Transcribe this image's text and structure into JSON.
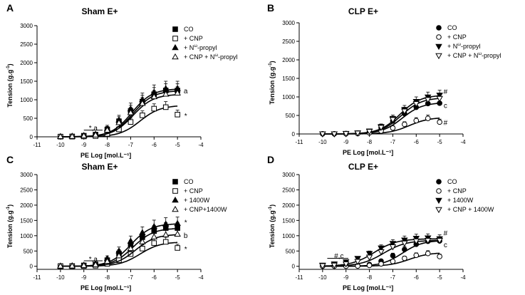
{
  "figure": {
    "x_ticks": [
      -11,
      -10,
      -9,
      -8,
      -7,
      -6,
      -5,
      -4
    ],
    "y_ticks": [
      0,
      500,
      1000,
      1500,
      2000,
      2500,
      3000
    ],
    "y_tick_labels": [
      "0",
      "500",
      "1000",
      "1500",
      "2000",
      "2500",
      "3000"
    ],
    "xlabel": "PE Log [mol.L⁻¹]",
    "ylabel_main": "Tension (g.g",
    "ylabel_sup": "-1",
    "ylabel_close": ")"
  },
  "chart_data": [
    {
      "type": "line",
      "panel_letter": "A",
      "title": "Sham E+",
      "xlabel": "PE Log [mol.L⁻¹]",
      "ylabel": "Tension (g.g⁻¹)",
      "xlim": [
        -11,
        -4
      ],
      "ylim": [
        0,
        3000
      ],
      "x": [
        -10,
        -9.5,
        -9,
        -8.5,
        -8,
        -7.5,
        -7,
        -6.5,
        -6,
        -5.5,
        -5
      ],
      "series": [
        {
          "name": "CO",
          "legend_label": "CO",
          "marker": "square-filled",
          "fit": [
            1250,
            -6.9,
            1.0
          ],
          "values": [
            5,
            10,
            30,
            60,
            200,
            420,
            700,
            950,
            1150,
            1250,
            1250
          ],
          "errors": [
            20,
            20,
            30,
            40,
            80,
            120,
            150,
            170,
            180,
            180,
            180
          ]
        },
        {
          "name": "+ CNP",
          "legend_label": "+ CNP",
          "marker": "square-open",
          "fit": [
            850,
            -6.6,
            1.0
          ],
          "values": [
            5,
            5,
            10,
            20,
            80,
            200,
            400,
            580,
            760,
            800,
            600
          ],
          "errors": [
            15,
            15,
            20,
            30,
            50,
            80,
            100,
            120,
            130,
            150,
            120
          ]
        },
        {
          "name": "+ Nω-propyl",
          "legend_label_pre": "+ N",
          "legend_label_sup": "ω",
          "legend_label_post": "-propyl",
          "marker": "triangle-filled",
          "fit": [
            1300,
            -6.95,
            1.0
          ],
          "values": [
            5,
            15,
            35,
            70,
            220,
            450,
            750,
            1000,
            1200,
            1300,
            1300
          ],
          "errors": [
            20,
            25,
            30,
            50,
            90,
            130,
            160,
            180,
            200,
            200,
            200
          ]
        },
        {
          "name": "+ CNP + Nω-propyl",
          "legend_label_pre": "+ CNP + N",
          "legend_label_sup": "ω",
          "legend_label_post": "-propyl",
          "marker": "triangle-open",
          "fit": [
            1150,
            -6.9,
            1.0
          ],
          "values": [
            5,
            10,
            25,
            50,
            180,
            380,
            650,
            900,
            1080,
            1150,
            1180
          ],
          "errors": [
            20,
            20,
            30,
            40,
            80,
            110,
            140,
            160,
            170,
            170,
            170
          ]
        }
      ],
      "annotations": [
        {
          "text": "*,a",
          "x": -8.6,
          "y": 250,
          "bar_from": -9,
          "bar_to": -8.2,
          "bar_y": 180
        },
        {
          "text": "a",
          "x": -4.65,
          "y": 1250
        },
        {
          "text": "*",
          "x": -4.65,
          "y": 580
        }
      ]
    },
    {
      "type": "line",
      "panel_letter": "B",
      "title": "CLP E+",
      "xlabel": "PE Log [mol.L⁻¹]",
      "ylabel": "Tension (g.g⁻¹)",
      "xlim": [
        -11,
        -4
      ],
      "ylim": [
        0,
        3000
      ],
      "x": [
        -10,
        -9.5,
        -9,
        -8.5,
        -8,
        -7.5,
        -7,
        -6.5,
        -6,
        -5.5,
        -5
      ],
      "series": [
        {
          "name": "CO",
          "legend_label": "CO",
          "marker": "circle-filled",
          "fit": [
            850,
            -6.6,
            1.0
          ],
          "values": [
            5,
            5,
            10,
            20,
            60,
            170,
            350,
            550,
            720,
            820,
            830
          ],
          "errors": [
            15,
            15,
            15,
            20,
            40,
            60,
            80,
            100,
            110,
            120,
            120
          ]
        },
        {
          "name": "+ CNP",
          "legend_label": "+ CNP",
          "marker": "circle-open",
          "fit": [
            450,
            -6.3,
            1.0
          ],
          "values": [
            5,
            5,
            5,
            10,
            30,
            80,
            160,
            260,
            360,
            420,
            320
          ],
          "errors": [
            10,
            10,
            10,
            15,
            20,
            40,
            60,
            70,
            80,
            90,
            80
          ]
        },
        {
          "name": "+ Nω-propyl",
          "legend_label_pre": "+ N",
          "legend_label_sup": "ω",
          "legend_label_post": "-propyl",
          "marker": "triangle-down-filled",
          "fit": [
            1050,
            -6.7,
            1.0
          ],
          "values": [
            5,
            5,
            15,
            30,
            80,
            200,
            420,
            660,
            880,
            1000,
            1050
          ],
          "errors": [
            15,
            15,
            20,
            25,
            50,
            70,
            90,
            110,
            120,
            130,
            130
          ]
        },
        {
          "name": "+ CNP + Nω-propyl",
          "legend_label_pre": "+ CNP + N",
          "legend_label_sup": "ω",
          "legend_label_post": "-propyl",
          "marker": "triangle-down-open",
          "fit": [
            980,
            -6.65,
            1.0
          ],
          "values": [
            5,
            5,
            10,
            25,
            70,
            180,
            390,
            620,
            820,
            930,
            960
          ],
          "errors": [
            15,
            15,
            20,
            25,
            45,
            65,
            85,
            100,
            110,
            120,
            120
          ]
        }
      ],
      "annotations": [
        {
          "text": "#",
          "x": -4.75,
          "y": 1150
        },
        {
          "text": "c",
          "x": -4.75,
          "y": 780
        },
        {
          "text": "#",
          "x": -4.75,
          "y": 320
        }
      ]
    },
    {
      "type": "line",
      "panel_letter": "C",
      "title": "Sham E+",
      "xlabel": "PE Log [mol.L⁻¹]",
      "ylabel": "Tension (g.g⁻¹)",
      "xlim": [
        -11,
        -4
      ],
      "ylim": [
        -100,
        3000
      ],
      "x": [
        -10,
        -9.5,
        -9,
        -8.5,
        -8,
        -7.5,
        -7,
        -6.5,
        -6,
        -5.5,
        -5
      ],
      "series": [
        {
          "name": "CO",
          "legend_label": "CO",
          "marker": "square-filled",
          "fit": [
            1250,
            -6.9,
            1.0
          ],
          "values": [
            5,
            10,
            30,
            60,
            200,
            420,
            700,
            950,
            1150,
            1250,
            1250
          ],
          "errors": [
            20,
            20,
            30,
            40,
            80,
            120,
            150,
            170,
            180,
            180,
            180
          ]
        },
        {
          "name": "+ CNP",
          "legend_label": "+ CNP",
          "marker": "square-open",
          "fit": [
            800,
            -6.6,
            1.0
          ],
          "values": [
            5,
            5,
            10,
            20,
            80,
            200,
            400,
            580,
            760,
            800,
            600
          ],
          "errors": [
            15,
            15,
            20,
            30,
            50,
            80,
            100,
            120,
            130,
            150,
            120
          ]
        },
        {
          "name": "+ 1400W",
          "legend_label": "+ 1400W",
          "marker": "triangle-filled",
          "fit": [
            1400,
            -7.0,
            1.0
          ],
          "values": [
            5,
            15,
            35,
            80,
            250,
            500,
            820,
            1100,
            1300,
            1380,
            1400
          ],
          "errors": [
            20,
            25,
            30,
            50,
            90,
            130,
            170,
            190,
            210,
            210,
            210
          ]
        },
        {
          "name": "+ CNP+1400W",
          "legend_label": "+ CNP+1400W",
          "marker": "triangle-open",
          "fit": [
            1050,
            -6.8,
            1.0
          ],
          "values": [
            5,
            10,
            25,
            50,
            160,
            340,
            580,
            800,
            960,
            1030,
            1050
          ],
          "errors": [
            20,
            20,
            30,
            40,
            70,
            110,
            140,
            160,
            170,
            170,
            170
          ]
        }
      ],
      "annotations": [
        {
          "text": "*,a",
          "x": -8.6,
          "y": 250,
          "bar_from": -9,
          "bar_to": -8.2,
          "bar_y": 180
        },
        {
          "text": "*",
          "x": -4.65,
          "y": 1450
        },
        {
          "text": "b",
          "x": -4.65,
          "y": 1020
        },
        {
          "text": "*",
          "x": -4.65,
          "y": 580
        }
      ]
    },
    {
      "type": "line",
      "panel_letter": "D",
      "title": "CLP E+",
      "xlabel": "PE Log [mol.L⁻¹]",
      "ylabel": "Tension (g.g⁻¹)",
      "xlim": [
        -11,
        -4
      ],
      "ylim": [
        -100,
        3000
      ],
      "x": [
        -10,
        -9.5,
        -9,
        -8.5,
        -8,
        -7.5,
        -7,
        -6.5,
        -6,
        -5.5,
        -5
      ],
      "series": [
        {
          "name": "CO",
          "legend_label": "CO",
          "marker": "circle-filled",
          "fit": [
            850,
            -6.6,
            1.0
          ],
          "values": [
            5,
            5,
            10,
            20,
            60,
            170,
            350,
            550,
            720,
            820,
            830
          ],
          "errors": [
            15,
            15,
            15,
            20,
            40,
            60,
            80,
            100,
            110,
            120,
            120
          ]
        },
        {
          "name": "+ CNP",
          "legend_label": "+ CNP",
          "marker": "circle-open",
          "fit": [
            450,
            -6.3,
            1.0
          ],
          "values": [
            5,
            5,
            5,
            10,
            30,
            80,
            160,
            260,
            360,
            420,
            320
          ],
          "errors": [
            10,
            10,
            10,
            15,
            20,
            40,
            60,
            70,
            80,
            90,
            80
          ]
        },
        {
          "name": "+ 1400W",
          "legend_label": "+ 1400W",
          "marker": "triangle-down-filled",
          "fit": [
            900,
            -7.8,
            0.9
          ],
          "values": [
            40,
            80,
            150,
            260,
            420,
            600,
            750,
            860,
            920,
            930,
            900
          ],
          "errors": [
            20,
            30,
            40,
            60,
            80,
            100,
            120,
            130,
            130,
            130,
            130
          ]
        },
        {
          "name": "+ CNP + 1400W",
          "legend_label": "+ CNP + 1400W",
          "marker": "triangle-down-open",
          "fit": [
            850,
            -7.4,
            0.9
          ],
          "values": [
            20,
            40,
            80,
            160,
            300,
            480,
            640,
            760,
            830,
            850,
            850
          ],
          "errors": [
            15,
            25,
            35,
            50,
            70,
            90,
            110,
            120,
            120,
            120,
            120
          ]
        }
      ],
      "annotations": [
        {
          "text": "#,c",
          "x": -9.3,
          "y": 350,
          "bar_from": -9.8,
          "bar_to": -8.9,
          "bar_y": 260
        },
        {
          "text": "#",
          "x": -4.75,
          "y": 1100
        },
        {
          "text": "c",
          "x": -4.75,
          "y": 720
        }
      ]
    }
  ]
}
